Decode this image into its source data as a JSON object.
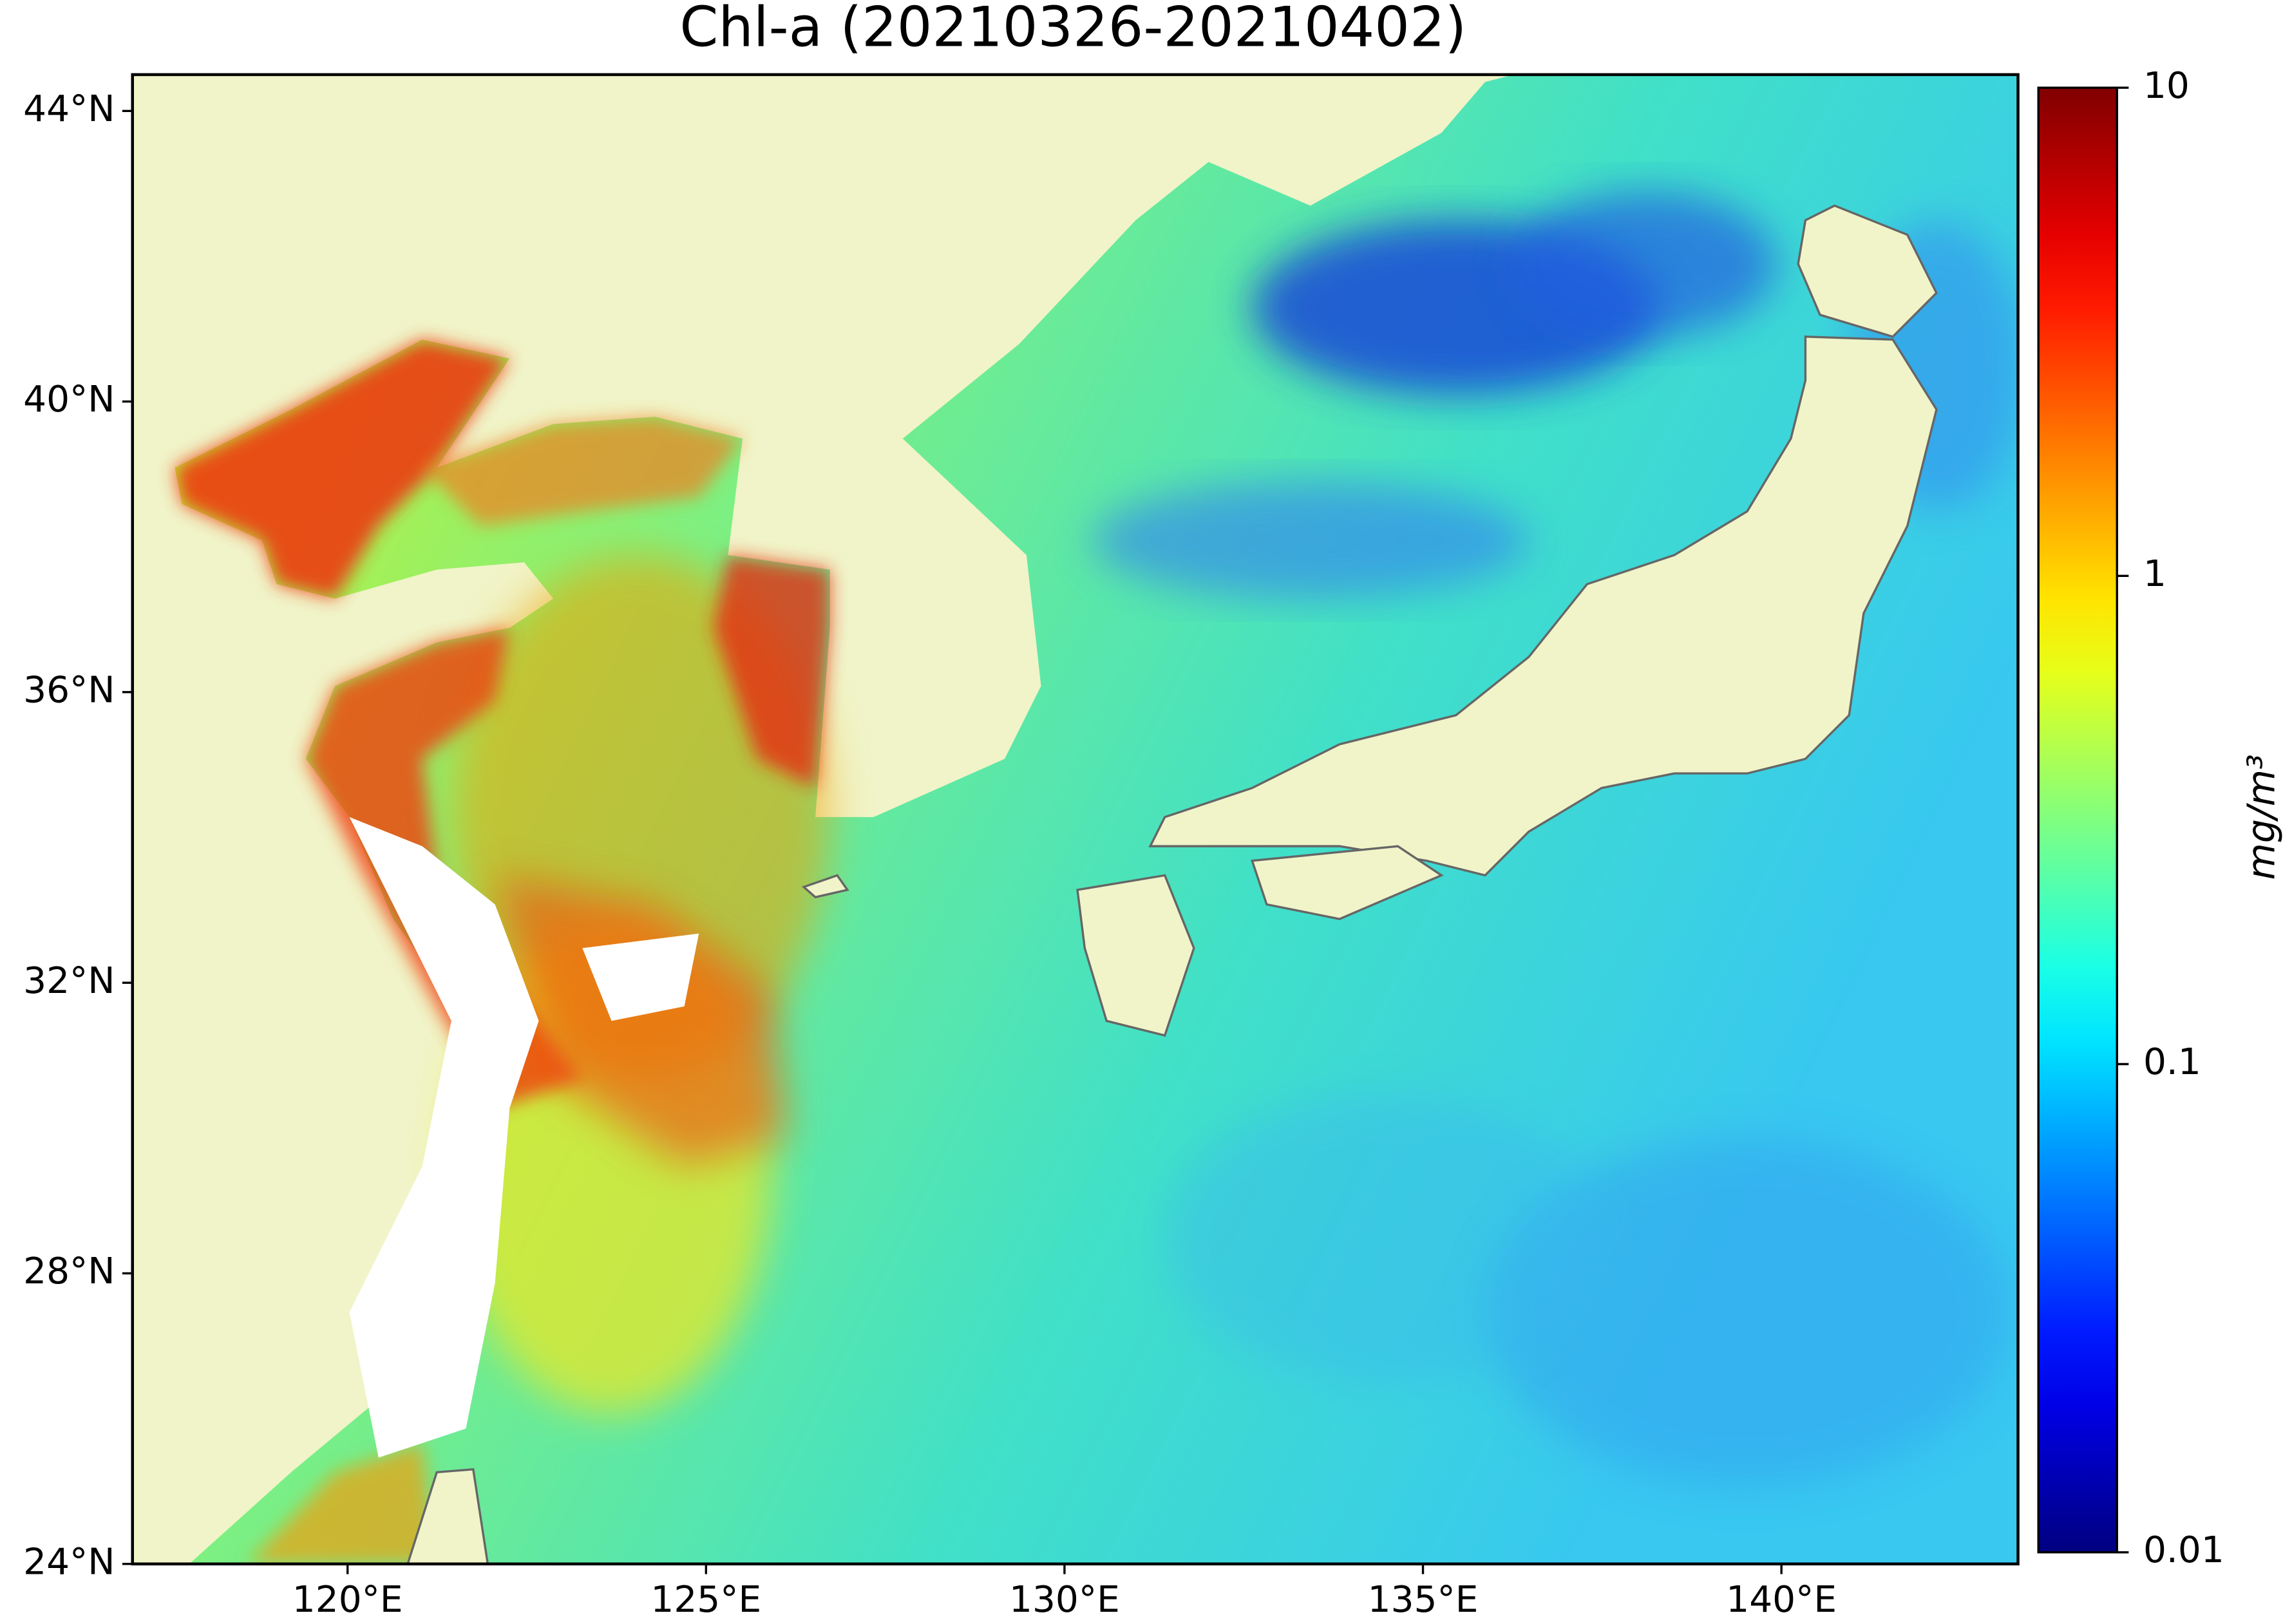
{
  "title": "Chl-a (20210326-20210402)",
  "map": {
    "xlim": [
      117,
      143.3
    ],
    "ylim": [
      24,
      44.5
    ],
    "xticks": [
      {
        "value": 120,
        "label": "120°E"
      },
      {
        "value": 125,
        "label": "125°E"
      },
      {
        "value": 130,
        "label": "130°E"
      },
      {
        "value": 135,
        "label": "135°E"
      },
      {
        "value": 140,
        "label": "140°E"
      }
    ],
    "yticks": [
      {
        "value": 24,
        "label": "24°N"
      },
      {
        "value": 28,
        "label": "28°N"
      },
      {
        "value": 32,
        "label": "32°N"
      },
      {
        "value": 36,
        "label": "36°N"
      },
      {
        "value": 40,
        "label": "40°N"
      },
      {
        "value": 44,
        "label": "44°N"
      }
    ]
  },
  "colorbar": {
    "label": "mg/m³",
    "colormap": "jet",
    "scale": "log",
    "lim": [
      0.01,
      10
    ],
    "ticks": [
      0.01,
      0.1,
      1,
      10
    ]
  }
}
